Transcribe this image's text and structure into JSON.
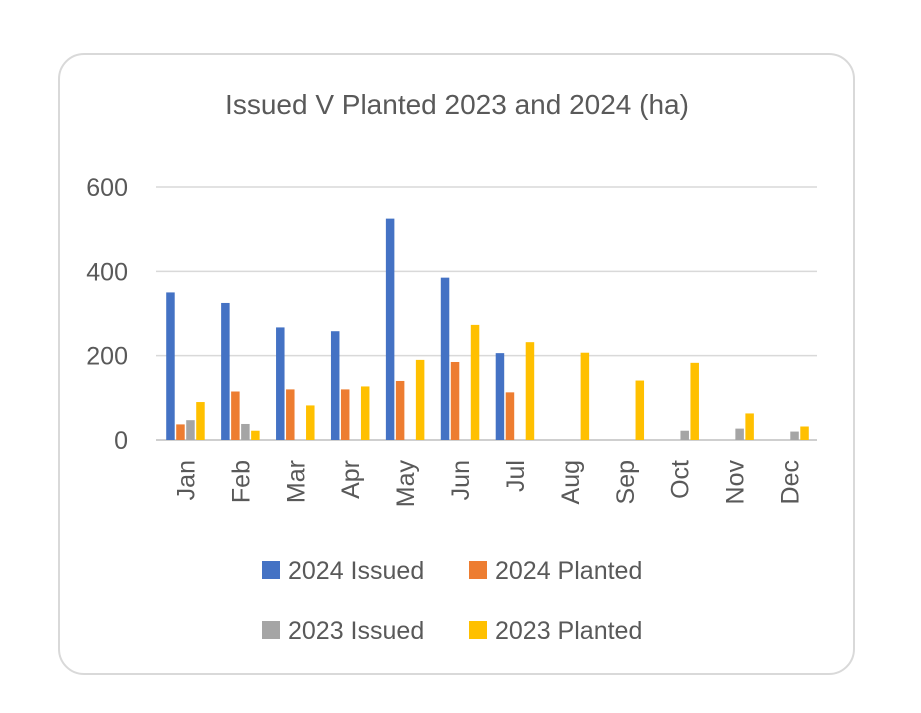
{
  "chart_data": {
    "type": "bar",
    "title": "Issued V Planted 2023 and 2024 (ha)",
    "xlabel": "",
    "ylabel": "",
    "ylim": [
      0,
      600
    ],
    "yticks": [
      0,
      200,
      400,
      600
    ],
    "grid": true,
    "legend_position": "bottom",
    "categories": [
      "Jan",
      "Feb",
      "Mar",
      "Apr",
      "May",
      "Jun",
      "Jul",
      "Aug",
      "Sep",
      "Oct",
      "Nov",
      "Dec"
    ],
    "series": [
      {
        "name": "2024 Issued",
        "color": "#4472c4",
        "values": [
          350,
          325,
          267,
          258,
          525,
          385,
          206,
          0,
          0,
          0,
          0,
          0
        ]
      },
      {
        "name": "2024 Planted",
        "color": "#ed7d31",
        "values": [
          37,
          115,
          120,
          120,
          140,
          185,
          113,
          0,
          0,
          0,
          0,
          0
        ]
      },
      {
        "name": "2023 Issued",
        "color": "#a5a5a5",
        "values": [
          47,
          38,
          0,
          0,
          0,
          0,
          0,
          0,
          0,
          22,
          27,
          20
        ]
      },
      {
        "name": "2023 Planted",
        "color": "#ffc000",
        "values": [
          90,
          22,
          82,
          127,
          190,
          273,
          232,
          207,
          141,
          183,
          63,
          32
        ]
      }
    ]
  }
}
